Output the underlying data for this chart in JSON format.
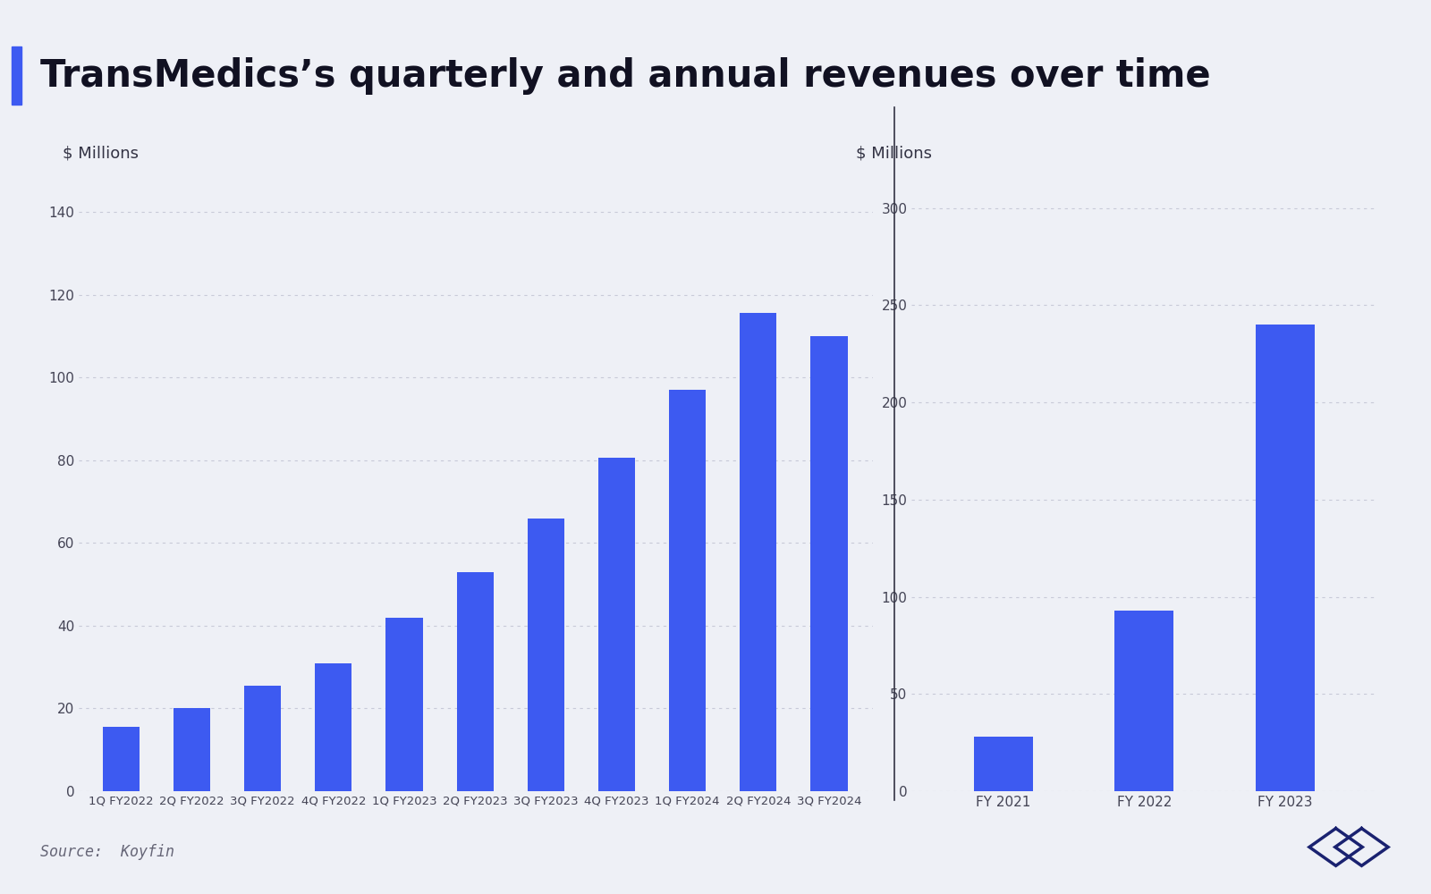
{
  "title": "TransMedics’s quarterly and annual revenues over time",
  "background_color": "#eef0f6",
  "bar_color": "#3d5af1",
  "quarterly_labels": [
    "1Q FY2022",
    "2Q FY2022",
    "3Q FY2022",
    "4Q FY2022",
    "1Q FY2023",
    "2Q FY2023",
    "3Q FY2023",
    "4Q FY2023",
    "1Q FY2024",
    "2Q FY2024",
    "3Q FY2024"
  ],
  "quarterly_values": [
    15.5,
    20.0,
    25.5,
    31.0,
    42.0,
    53.0,
    66.0,
    80.5,
    97.0,
    115.5,
    110.0
  ],
  "quarterly_ylabel": "$ Millions",
  "quarterly_yticks": [
    0,
    20,
    40,
    60,
    80,
    100,
    120,
    140
  ],
  "quarterly_ylim": [
    0,
    148
  ],
  "annual_labels": [
    "FY 2021",
    "FY 2022",
    "FY 2023"
  ],
  "annual_values": [
    28.0,
    93.0,
    240.0
  ],
  "annual_ylabel": "$ Millions",
  "annual_yticks": [
    0,
    50,
    100,
    150,
    200,
    250,
    300
  ],
  "annual_ylim": [
    0,
    315
  ],
  "source_text": "Source:  Koyfin",
  "title_fontsize": 30,
  "axis_label_fontsize": 13,
  "tick_fontsize": 11,
  "source_fontsize": 12,
  "divider_color": "#333344",
  "grid_color": "#c8cad8",
  "title_accent_color": "#3d5af1"
}
